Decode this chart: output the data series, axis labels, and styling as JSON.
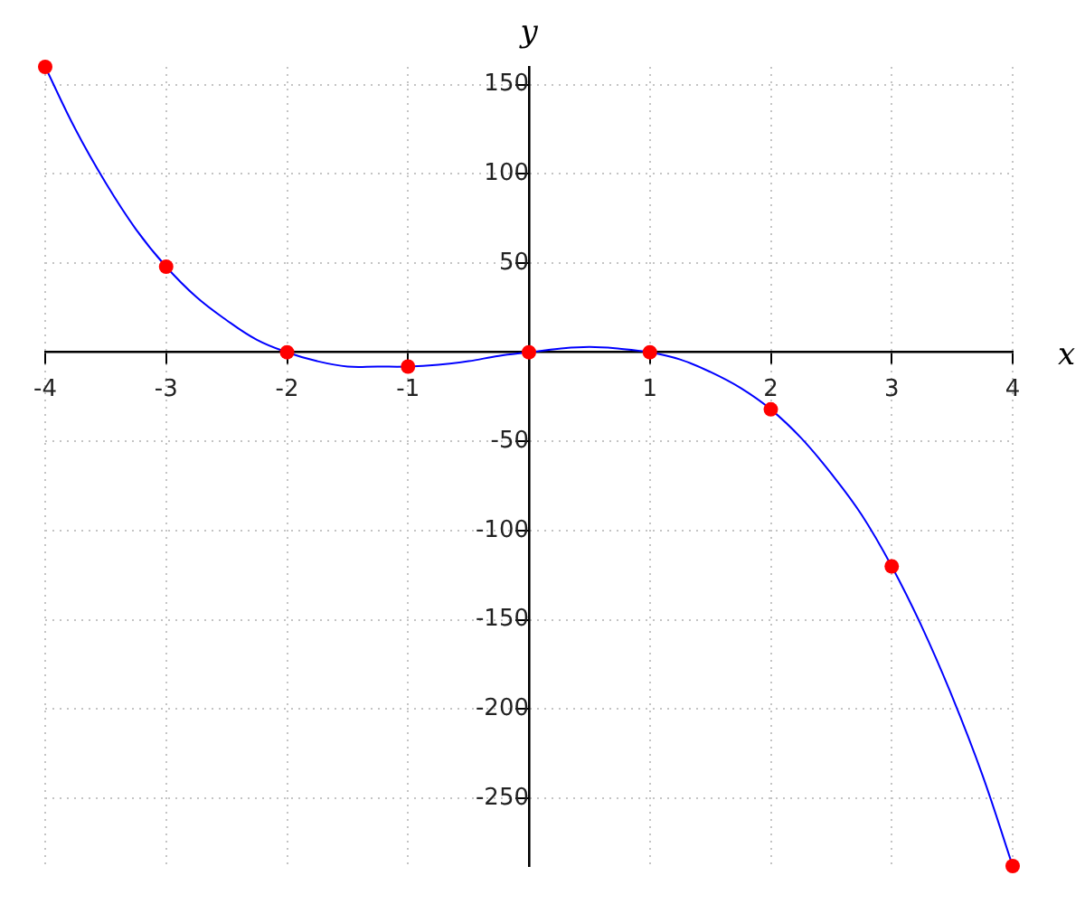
{
  "chart_data": {
    "type": "line",
    "xlabel": "x",
    "ylabel": "y",
    "xlim": [
      -4,
      4
    ],
    "ylim": [
      -288,
      160
    ],
    "xticks": [
      -4,
      -3,
      -2,
      -1,
      1,
      2,
      3,
      4
    ],
    "yticks": [
      -250,
      -200,
      -150,
      -100,
      -50,
      50,
      100,
      150
    ],
    "grid": true,
    "legend": false,
    "series": [
      {
        "type": "line",
        "color": "#0000ff",
        "marker": "none",
        "line_style": "solid",
        "x": [
          -4,
          -3.75,
          -3.5,
          -3.25,
          -3,
          -2.75,
          -2.5,
          -2.25,
          -2,
          -1.75,
          -1.5,
          -1.25,
          -1,
          -0.75,
          -0.5,
          -0.25,
          0,
          0.25,
          0.5,
          0.75,
          1,
          1.25,
          1.5,
          1.75,
          2,
          2.25,
          2.5,
          2.75,
          3,
          3.25,
          3.5,
          3.75,
          4
        ],
        "values": [
          160,
          125,
          95,
          69,
          48,
          31,
          18,
          7,
          0,
          -5,
          -8,
          -8,
          -8,
          -7,
          -5,
          -2,
          0,
          2,
          3,
          2,
          0,
          -4,
          -11,
          -20,
          -32,
          -48,
          -68,
          -91,
          -120,
          -154,
          -193,
          -237,
          -288
        ]
      },
      {
        "type": "scatter",
        "color": "#ff0000",
        "marker": "circle",
        "x": [
          -4,
          -3,
          -2,
          -1,
          0,
          1,
          2,
          3,
          4
        ],
        "values": [
          160,
          48,
          0,
          -8,
          0,
          0,
          -32,
          -120,
          -288
        ]
      }
    ]
  }
}
